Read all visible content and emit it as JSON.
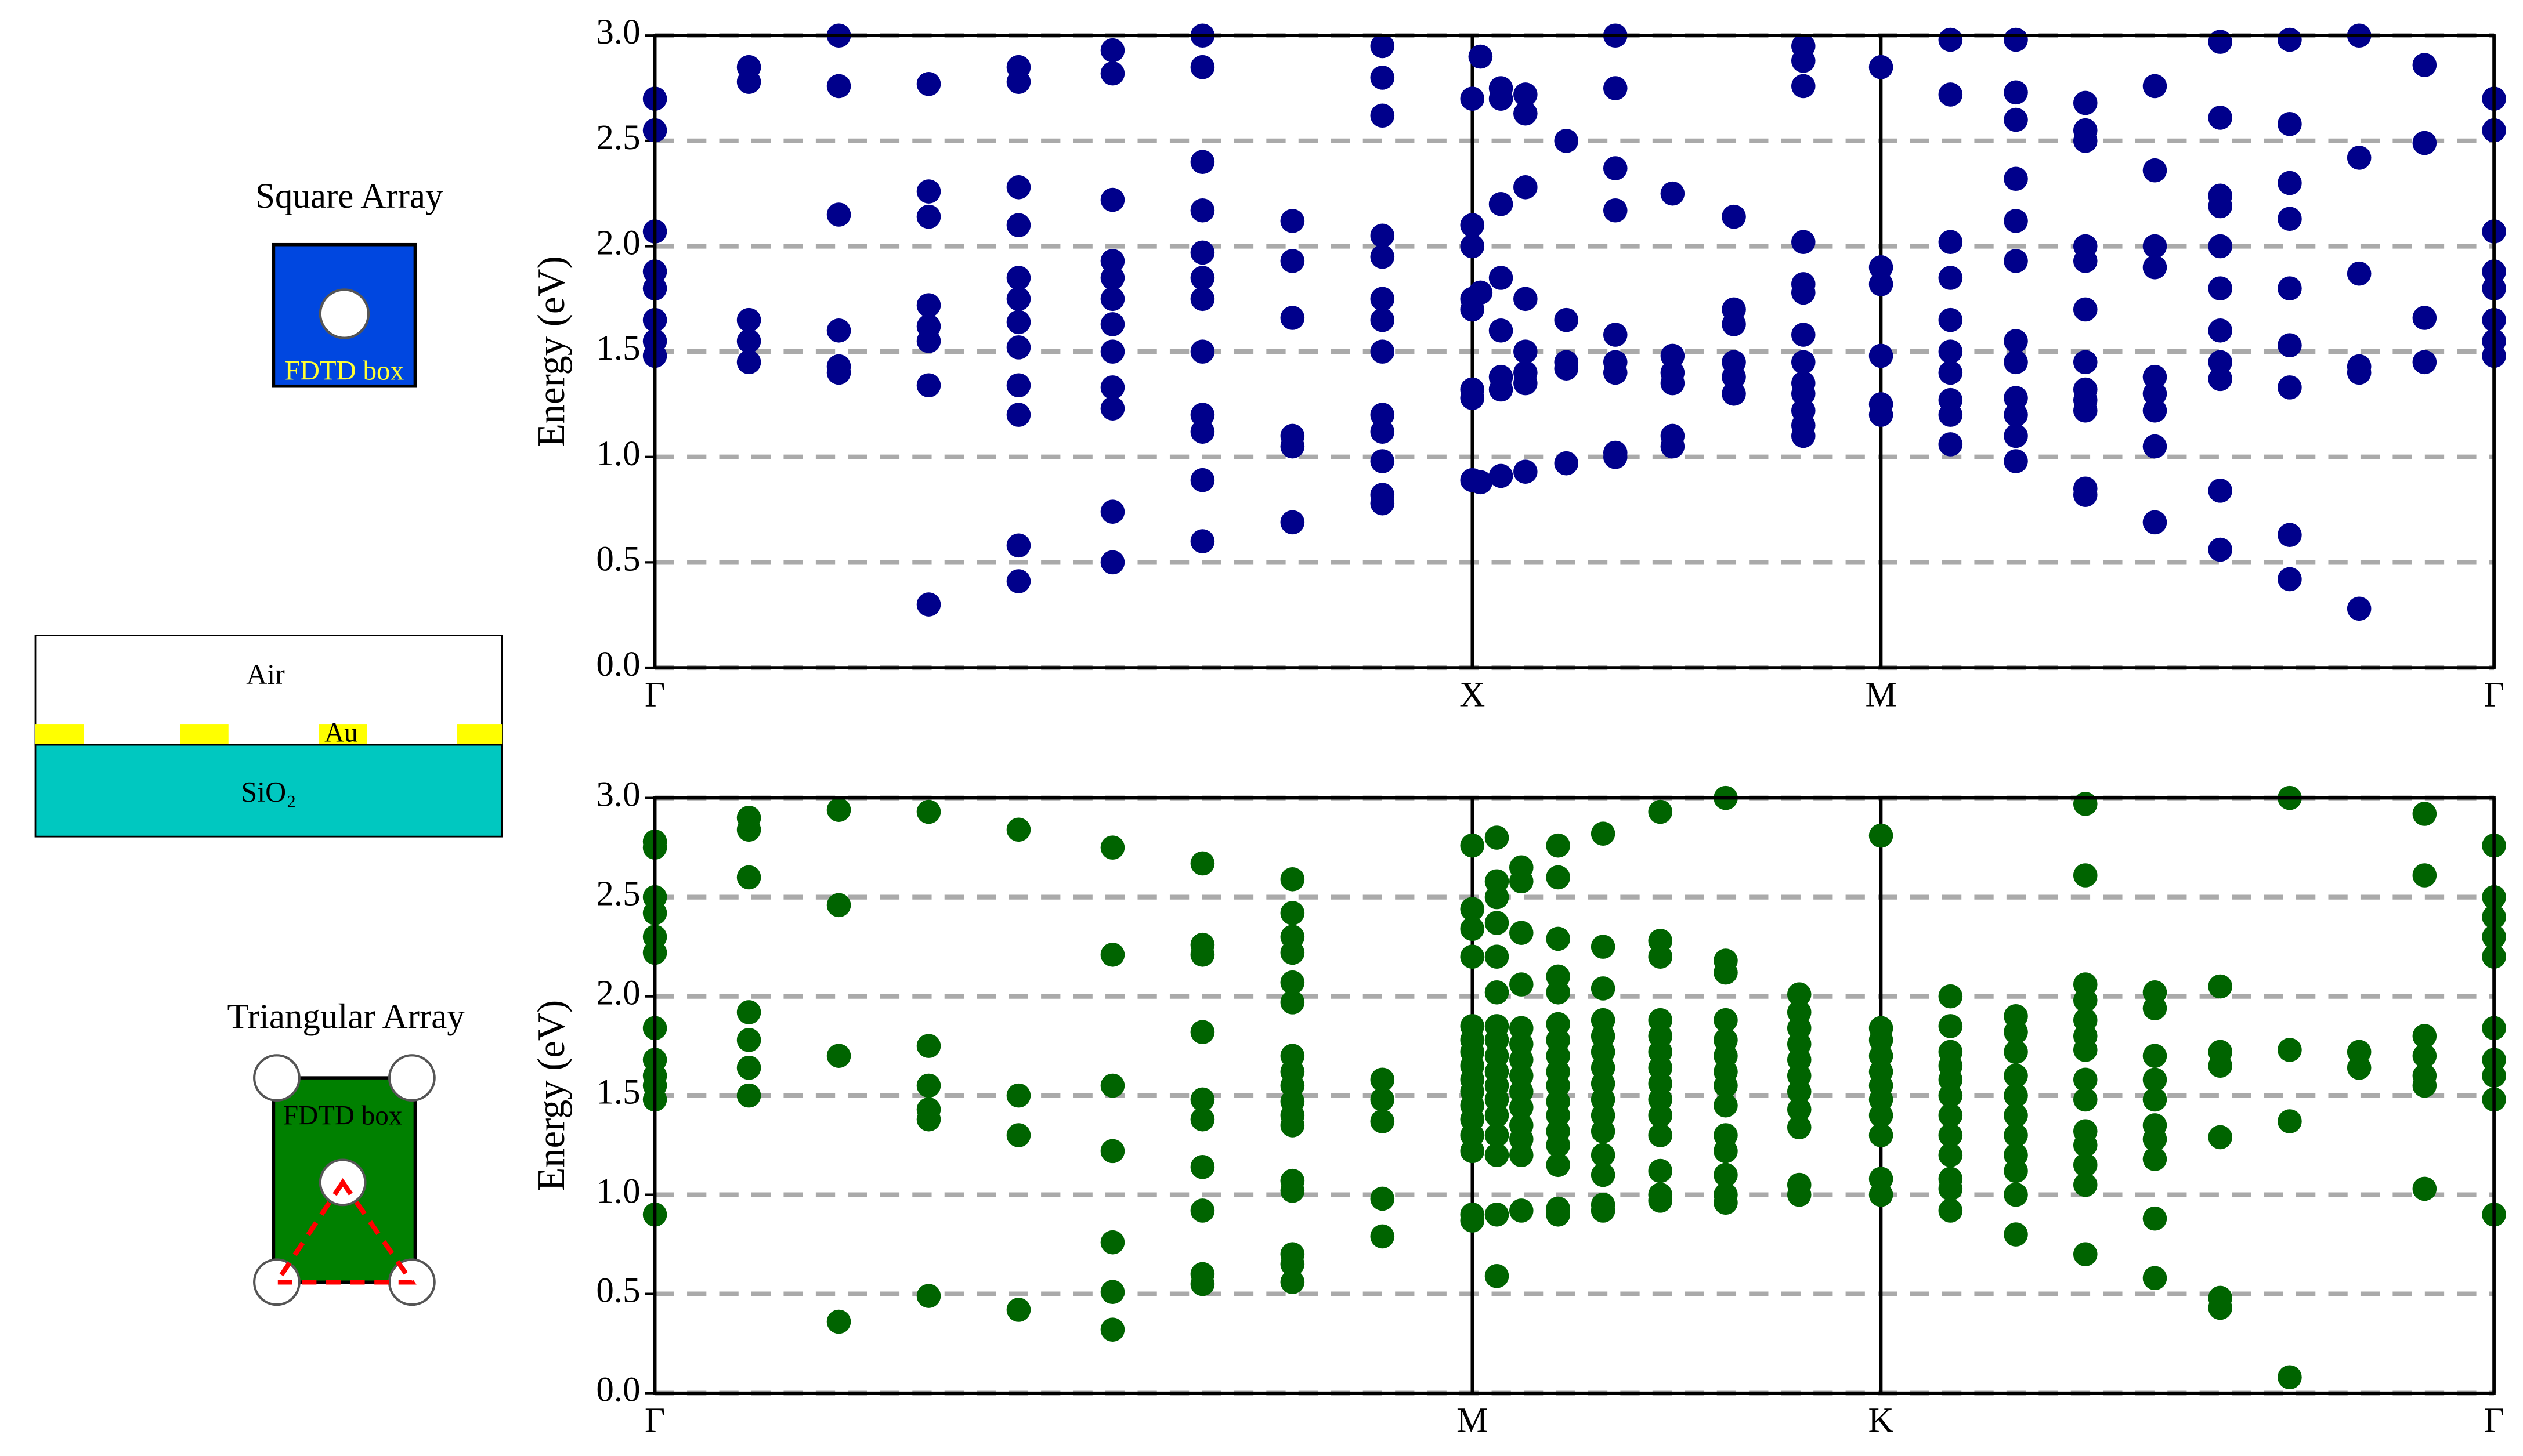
{
  "chart_data": [
    {
      "type": "scatter",
      "ylabel": "Energy (eV)",
      "color": "#00008b",
      "grid": true,
      "xlim": [
        0,
        4.5
      ],
      "ylim": [
        0,
        3
      ],
      "xticks": [
        {
          "value": 0,
          "label": "Γ"
        },
        {
          "value": 2,
          "label": "X"
        },
        {
          "value": 3,
          "label": "M"
        },
        {
          "value": 4.5,
          "label": "Γ"
        }
      ],
      "yticks": [
        {
          "value": 0,
          "label": "0.0"
        },
        {
          "value": 0.5,
          "label": "0.5"
        },
        {
          "value": 1,
          "label": "1.0"
        },
        {
          "value": 1.5,
          "label": "1.5"
        },
        {
          "value": 2,
          "label": "2.0"
        },
        {
          "value": 2.5,
          "label": "2.5"
        },
        {
          "value": 3,
          "label": "3.0"
        }
      ],
      "x": [
        0,
        0,
        0,
        0,
        0,
        0,
        0,
        0,
        0.23,
        0.23,
        0.23,
        0.23,
        0.23,
        0.45,
        0.45,
        0.45,
        0.45,
        0.45,
        0.45,
        0.67,
        0.67,
        0.67,
        0.67,
        0.67,
        0.67,
        0.67,
        0.67,
        0.89,
        0.89,
        0.89,
        0.89,
        0.89,
        0.89,
        0.89,
        0.89,
        0.89,
        0.89,
        0.89,
        0.89,
        1.12,
        1.12,
        1.12,
        1.12,
        1.12,
        1.12,
        1.12,
        1.12,
        1.12,
        1.12,
        1.12,
        1.12,
        1.34,
        1.34,
        1.34,
        1.34,
        1.34,
        1.34,
        1.34,
        1.34,
        1.34,
        1.34,
        1.34,
        1.34,
        1.56,
        1.56,
        1.56,
        1.56,
        1.56,
        1.56,
        1.78,
        1.78,
        1.78,
        1.78,
        1.78,
        1.78,
        1.78,
        1.78,
        1.78,
        1.78,
        1.78,
        1.78,
        1.78,
        2,
        2,
        2,
        2,
        2,
        2,
        2,
        2,
        2.02,
        2.02,
        2.02,
        2.07,
        2.07,
        2.07,
        2.07,
        2.07,
        2.07,
        2.07,
        2.07,
        2.13,
        2.13,
        2.13,
        2.13,
        2.13,
        2.13,
        2.13,
        2.13,
        2.23,
        2.23,
        2.23,
        2.23,
        2.23,
        2.35,
        2.35,
        2.35,
        2.35,
        2.35,
        2.35,
        2.35,
        2.35,
        2.35,
        2.49,
        2.49,
        2.49,
        2.49,
        2.49,
        2.49,
        2.64,
        2.64,
        2.64,
        2.64,
        2.64,
        2.64,
        2.81,
        2.81,
        2.81,
        2.81,
        2.81,
        2.81,
        2.81,
        2.81,
        2.81,
        2.81,
        2.81,
        2.81,
        2.81,
        3,
        3,
        3,
        3,
        3,
        3,
        3.17,
        3.17,
        3.17,
        3.17,
        3.17,
        3.17,
        3.17,
        3.17,
        3.17,
        3.17,
        3.33,
        3.33,
        3.33,
        3.33,
        3.33,
        3.33,
        3.33,
        3.33,
        3.33,
        3.33,
        3.33,
        3.33,
        3.5,
        3.5,
        3.5,
        3.5,
        3.5,
        3.5,
        3.5,
        3.5,
        3.5,
        3.5,
        3.5,
        3.5,
        3.67,
        3.67,
        3.67,
        3.67,
        3.67,
        3.67,
        3.67,
        3.67,
        3.67,
        3.83,
        3.83,
        3.83,
        3.83,
        3.83,
        3.83,
        3.83,
        3.83,
        3.83,
        3.83,
        3.83,
        4,
        4,
        4,
        4,
        4,
        4,
        4,
        4,
        4,
        4.17,
        4.17,
        4.17,
        4.17,
        4.17,
        4.17,
        4.33,
        4.33,
        4.33,
        4.33,
        4.5,
        4.5,
        4.5,
        4.5,
        4.5,
        4.5,
        4.5,
        4.5
      ],
      "values": [
        2.7,
        2.55,
        2.07,
        1.88,
        1.8,
        1.65,
        1.55,
        1.48,
        2.85,
        2.78,
        1.65,
        1.55,
        1.45,
        3.0,
        2.76,
        2.15,
        1.6,
        1.43,
        1.4,
        2.77,
        2.26,
        2.14,
        1.72,
        1.62,
        1.55,
        1.34,
        0.3,
        2.85,
        2.78,
        2.28,
        2.1,
        1.85,
        1.75,
        1.64,
        1.52,
        1.34,
        1.2,
        0.58,
        0.41,
        2.93,
        2.82,
        2.22,
        1.93,
        1.85,
        1.75,
        1.63,
        1.5,
        1.33,
        1.23,
        0.74,
        0.5,
        3.0,
        2.85,
        2.4,
        2.17,
        1.97,
        1.85,
        1.75,
        1.5,
        1.2,
        1.12,
        0.89,
        0.6,
        2.12,
        1.93,
        1.66,
        1.1,
        1.05,
        0.69,
        2.95,
        2.8,
        2.62,
        2.05,
        1.95,
        1.75,
        1.65,
        1.5,
        1.2,
        1.12,
        0.98,
        0.82,
        0.78,
        2.7,
        2.1,
        2.0,
        1.75,
        1.7,
        1.32,
        1.28,
        0.89,
        2.9,
        1.78,
        0.88,
        2.75,
        2.7,
        2.2,
        1.85,
        1.6,
        1.38,
        1.32,
        0.91,
        2.72,
        2.63,
        2.28,
        1.75,
        1.5,
        1.4,
        1.35,
        0.93,
        2.5,
        1.65,
        1.45,
        1.42,
        0.97,
        3.0,
        2.75,
        2.37,
        2.17,
        1.58,
        1.45,
        1.4,
        1.02,
        1.0,
        2.25,
        1.48,
        1.4,
        1.35,
        1.1,
        1.05,
        2.14,
        1.7,
        1.63,
        1.45,
        1.38,
        1.3,
        2.95,
        2.88,
        2.76,
        2.02,
        1.82,
        1.78,
        1.58,
        1.45,
        1.35,
        1.3,
        1.22,
        1.15,
        1.1,
        2.85,
        1.9,
        1.82,
        1.48,
        1.25,
        1.2,
        2.98,
        2.72,
        2.02,
        1.85,
        1.65,
        1.5,
        1.4,
        1.27,
        1.2,
        1.06,
        2.98,
        2.73,
        2.6,
        2.32,
        2.12,
        1.93,
        1.55,
        1.45,
        1.28,
        1.2,
        1.1,
        0.98,
        2.68,
        2.55,
        2.5,
        2.0,
        1.93,
        1.7,
        1.45,
        1.32,
        1.27,
        1.22,
        0.85,
        0.82,
        2.76,
        2.36,
        2.0,
        1.9,
        1.38,
        1.3,
        1.22,
        1.05,
        0.69,
        2.97,
        2.61,
        2.24,
        2.19,
        2.0,
        1.8,
        1.6,
        1.45,
        1.37,
        0.84,
        0.56,
        2.98,
        2.58,
        2.3,
        2.13,
        1.8,
        1.53,
        1.33,
        0.63,
        0.42,
        3.0,
        2.42,
        1.87,
        1.43,
        1.4,
        0.28,
        2.86,
        2.49,
        1.66,
        1.45,
        2.7,
        2.55,
        2.07,
        1.88,
        1.8,
        1.65,
        1.55,
        1.48
      ]
    },
    {
      "type": "scatter",
      "ylabel": "Energy (eV)",
      "color": "#006400",
      "grid": true,
      "xlim": [
        0,
        4.5
      ],
      "ylim": [
        0,
        3
      ],
      "xticks": [
        {
          "value": 0,
          "label": "Γ"
        },
        {
          "value": 2,
          "label": "M"
        },
        {
          "value": 3,
          "label": "K"
        },
        {
          "value": 4.5,
          "label": "Γ"
        }
      ],
      "yticks": [
        {
          "value": 0,
          "label": "0.0"
        },
        {
          "value": 0.5,
          "label": "0.5"
        },
        {
          "value": 1,
          "label": "1.0"
        },
        {
          "value": 1.5,
          "label": "1.5"
        },
        {
          "value": 2,
          "label": "2.0"
        },
        {
          "value": 2.5,
          "label": "2.5"
        },
        {
          "value": 3,
          "label": "3.0"
        }
      ],
      "x": [
        0,
        0,
        0,
        0,
        0,
        0,
        0,
        0,
        0,
        0,
        0,
        0,
        0.23,
        0.23,
        0.23,
        0.23,
        0.23,
        0.23,
        0.23,
        0.45,
        0.45,
        0.45,
        0.45,
        0.67,
        0.67,
        0.67,
        0.67,
        0.67,
        0.67,
        0.89,
        0.89,
        0.89,
        0.89,
        1.12,
        1.12,
        1.12,
        1.12,
        1.12,
        1.12,
        1.12,
        1.34,
        1.34,
        1.34,
        1.34,
        1.34,
        1.34,
        1.34,
        1.34,
        1.34,
        1.34,
        1.56,
        1.56,
        1.56,
        1.56,
        1.56,
        1.56,
        1.56,
        1.56,
        1.56,
        1.56,
        1.56,
        1.56,
        1.56,
        1.56,
        1.56,
        1.56,
        1.56,
        1.78,
        1.78,
        1.78,
        1.78,
        1.78,
        2,
        2,
        2,
        2,
        2,
        2,
        2,
        2,
        2,
        2,
        2,
        2,
        2,
        2,
        2,
        2,
        2.06,
        2.06,
        2.06,
        2.06,
        2.06,
        2.06,
        2.06,
        2.06,
        2.06,
        2.06,
        2.06,
        2.06,
        2.06,
        2.06,
        2.06,
        2.06,
        2.06,
        2.12,
        2.12,
        2.12,
        2.12,
        2.12,
        2.12,
        2.12,
        2.12,
        2.12,
        2.12,
        2.12,
        2.12,
        2.12,
        2.12,
        2.21,
        2.21,
        2.21,
        2.21,
        2.21,
        2.21,
        2.21,
        2.21,
        2.21,
        2.21,
        2.21,
        2.21,
        2.21,
        2.21,
        2.21,
        2.21,
        2.21,
        2.32,
        2.32,
        2.32,
        2.32,
        2.32,
        2.32,
        2.32,
        2.32,
        2.32,
        2.32,
        2.32,
        2.32,
        2.32,
        2.32,
        2.32,
        2.46,
        2.46,
        2.46,
        2.46,
        2.46,
        2.46,
        2.46,
        2.46,
        2.46,
        2.46,
        2.46,
        2.46,
        2.46,
        2.46,
        2.62,
        2.62,
        2.62,
        2.62,
        2.62,
        2.62,
        2.62,
        2.62,
        2.62,
        2.62,
        2.62,
        2.62,
        2.62,
        2.62,
        2.8,
        2.8,
        2.8,
        2.8,
        2.8,
        2.8,
        2.8,
        2.8,
        2.8,
        2.8,
        2.8,
        3,
        3,
        3,
        3,
        3,
        3,
        3,
        3,
        3,
        3,
        3,
        3.17,
        3.17,
        3.17,
        3.17,
        3.17,
        3.17,
        3.17,
        3.17,
        3.17,
        3.17,
        3.17,
        3.17,
        3.33,
        3.33,
        3.33,
        3.33,
        3.33,
        3.33,
        3.33,
        3.33,
        3.33,
        3.33,
        3.33,
        3.5,
        3.5,
        3.5,
        3.5,
        3.5,
        3.5,
        3.5,
        3.5,
        3.5,
        3.5,
        3.5,
        3.5,
        3.5,
        3.5,
        3.67,
        3.67,
        3.67,
        3.67,
        3.67,
        3.67,
        3.67,
        3.67,
        3.67,
        3.67,
        3.83,
        3.83,
        3.83,
        3.83,
        3.83,
        3.83,
        4,
        4,
        4,
        4,
        4.17,
        4.17,
        4.33,
        4.33,
        4.33,
        4.33,
        4.33,
        4.33,
        4.33,
        4.5,
        4.5,
        4.5,
        4.5,
        4.5,
        4.5,
        4.5,
        4.5,
        4.5,
        4.5
      ],
      "values": [
        2.78,
        2.75,
        2.5,
        2.42,
        2.3,
        2.22,
        1.84,
        1.68,
        1.6,
        1.55,
        1.48,
        0.9,
        2.9,
        2.84,
        2.6,
        1.92,
        1.78,
        1.64,
        1.5,
        2.94,
        2.46,
        1.7,
        0.36,
        2.93,
        1.75,
        1.55,
        1.43,
        1.38,
        0.49,
        2.84,
        1.5,
        1.3,
        0.42,
        2.75,
        2.21,
        1.55,
        1.22,
        0.76,
        0.51,
        0.32,
        2.67,
        2.26,
        2.21,
        1.82,
        1.48,
        1.38,
        1.14,
        0.92,
        0.6,
        0.55,
        2.59,
        2.42,
        2.3,
        2.22,
        2.07,
        1.97,
        1.7,
        1.62,
        1.55,
        1.47,
        1.4,
        1.35,
        1.07,
        1.02,
        0.7,
        0.65,
        0.56,
        1.58,
        1.48,
        1.37,
        0.98,
        0.79,
        2.76,
        2.44,
        2.34,
        2.2,
        1.85,
        1.78,
        1.72,
        1.65,
        1.58,
        1.52,
        1.45,
        1.38,
        1.3,
        1.22,
        0.9,
        0.87,
        2.8,
        2.58,
        2.5,
        2.37,
        2.2,
        2.02,
        1.85,
        1.78,
        1.7,
        1.62,
        1.55,
        1.48,
        1.4,
        1.3,
        1.2,
        0.9,
        0.59,
        2.65,
        2.58,
        2.32,
        2.06,
        1.84,
        1.76,
        1.68,
        1.6,
        1.52,
        1.44,
        1.35,
        1.28,
        1.2,
        0.92,
        2.76,
        2.6,
        2.29,
        2.1,
        2.02,
        1.86,
        1.78,
        1.7,
        1.62,
        1.55,
        1.47,
        1.4,
        1.32,
        1.25,
        1.15,
        0.93,
        0.9,
        2.82,
        2.25,
        2.04,
        1.88,
        1.8,
        1.72,
        1.64,
        1.56,
        1.48,
        1.4,
        1.32,
        1.2,
        1.1,
        0.95,
        0.92,
        2.93,
        2.28,
        2.2,
        1.88,
        1.8,
        1.72,
        1.64,
        1.56,
        1.48,
        1.4,
        1.3,
        1.12,
        1.0,
        0.97,
        3.0,
        2.18,
        2.12,
        1.88,
        1.78,
        1.7,
        1.62,
        1.55,
        1.45,
        1.3,
        1.22,
        1.1,
        1.0,
        0.96,
        2.01,
        1.92,
        1.84,
        1.76,
        1.68,
        1.6,
        1.52,
        1.43,
        1.34,
        1.05,
        1.0,
        2.81,
        1.84,
        1.78,
        1.7,
        1.62,
        1.55,
        1.48,
        1.4,
        1.3,
        1.08,
        1.0,
        2.0,
        1.85,
        1.72,
        1.65,
        1.58,
        1.5,
        1.4,
        1.3,
        1.2,
        1.08,
        1.03,
        0.92,
        1.9,
        1.82,
        1.72,
        1.6,
        1.5,
        1.4,
        1.3,
        1.2,
        1.12,
        1.0,
        0.8,
        2.97,
        2.61,
        2.06,
        1.98,
        1.88,
        1.8,
        1.73,
        1.58,
        1.48,
        1.32,
        1.25,
        1.15,
        1.05,
        0.7,
        2.02,
        1.94,
        1.7,
        1.58,
        1.48,
        1.35,
        1.28,
        1.18,
        0.88,
        0.58,
        2.05,
        1.72,
        1.65,
        1.29,
        0.48,
        0.43,
        3.0,
        1.73,
        1.37,
        0.08,
        1.72,
        1.64,
        2.92,
        2.61,
        1.8,
        1.7,
        1.6,
        1.55,
        1.03,
        2.76,
        2.5,
        2.4,
        2.3,
        2.2,
        1.84,
        1.68,
        1.6,
        1.48,
        0.9
      ]
    }
  ],
  "diagrams": {
    "square_title": "Square Array",
    "square_box_label": "FDTD box",
    "air": "Air",
    "metal": "Au",
    "substrate": "SiO₂",
    "triangular_title": "Triangular Array",
    "triangular_box_label": "FDTD box"
  }
}
